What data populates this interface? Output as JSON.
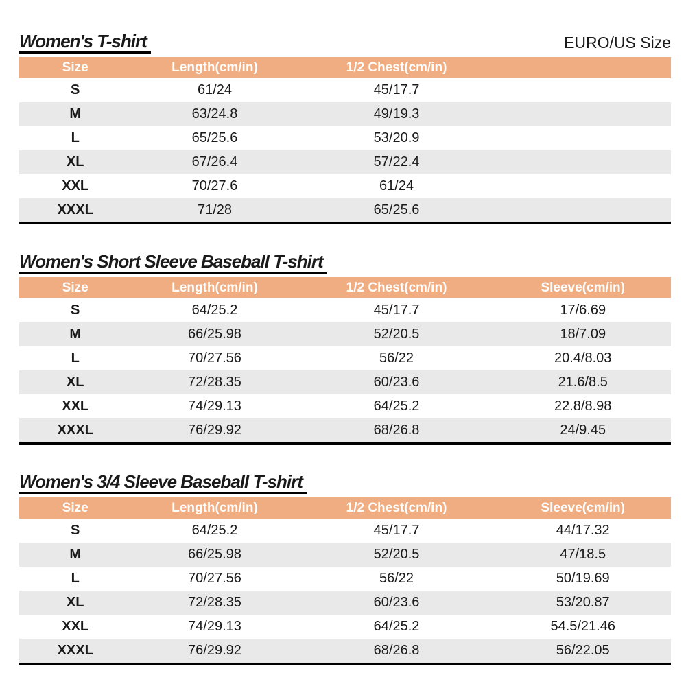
{
  "page": {
    "corner_label": "EURO/US Size"
  },
  "colors": {
    "header_bg": "#F1AD82",
    "header_text": "#FFFFFF",
    "row_alt_bg": "#E9E9E9",
    "text": "#1A1A1A",
    "table_bottom_border": "#000000"
  },
  "tables": [
    {
      "title": "Women's T-shirt",
      "corner_label": "EURO/US Size",
      "columns": [
        "Size",
        "Length(cm/in)",
        "1/2 Chest(cm/in)",
        ""
      ],
      "rows": [
        [
          "S",
          "61/24",
          "45/17.7",
          ""
        ],
        [
          "M",
          "63/24.8",
          "49/19.3",
          ""
        ],
        [
          "L",
          "65/25.6",
          "53/20.9",
          ""
        ],
        [
          "XL",
          "67/26.4",
          "57/22.4",
          ""
        ],
        [
          "XXL",
          "70/27.6",
          "61/24",
          ""
        ],
        [
          "XXXL",
          "71/28",
          "65/25.6",
          ""
        ]
      ]
    },
    {
      "title": "Women's Short Sleeve Baseball T-shirt",
      "corner_label": "",
      "columns": [
        "Size",
        "Length(cm/in)",
        "1/2 Chest(cm/in)",
        "Sleeve(cm/in)"
      ],
      "rows": [
        [
          "S",
          "64/25.2",
          "45/17.7",
          "17/6.69"
        ],
        [
          "M",
          "66/25.98",
          "52/20.5",
          "18/7.09"
        ],
        [
          "L",
          "70/27.56",
          "56/22",
          "20.4/8.03"
        ],
        [
          "XL",
          "72/28.35",
          "60/23.6",
          "21.6/8.5"
        ],
        [
          "XXL",
          "74/29.13",
          "64/25.2",
          "22.8/8.98"
        ],
        [
          "XXXL",
          "76/29.92",
          "68/26.8",
          "24/9.45"
        ]
      ]
    },
    {
      "title": "Women's 3/4 Sleeve Baseball T-shirt",
      "corner_label": "",
      "columns": [
        "Size",
        "Length(cm/in)",
        "1/2 Chest(cm/in)",
        "Sleeve(cm/in)"
      ],
      "rows": [
        [
          "S",
          "64/25.2",
          "45/17.7",
          "44/17.32"
        ],
        [
          "M",
          "66/25.98",
          "52/20.5",
          "47/18.5"
        ],
        [
          "L",
          "70/27.56",
          "56/22",
          "50/19.69"
        ],
        [
          "XL",
          "72/28.35",
          "60/23.6",
          "53/20.87"
        ],
        [
          "XXL",
          "74/29.13",
          "64/25.2",
          "54.5/21.46"
        ],
        [
          "XXXL",
          "76/29.92",
          "68/26.8",
          "56/22.05"
        ]
      ]
    }
  ]
}
